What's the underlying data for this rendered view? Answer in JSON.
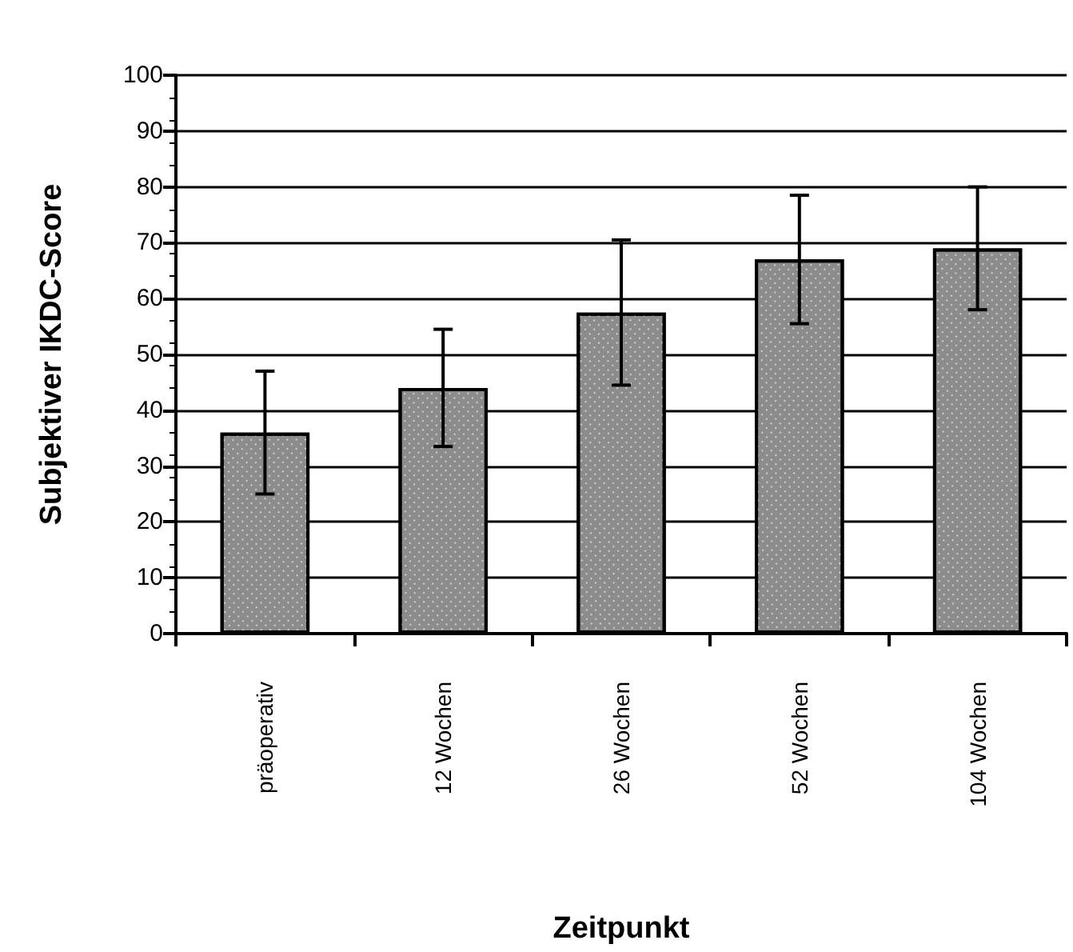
{
  "chart_data": {
    "type": "bar",
    "xlabel": "Zeitpunkt",
    "ylabel": "Subjektiver IKDC-Score",
    "categories": [
      "präoperativ",
      "12 Wochen",
      "26 Wochen",
      "52 Wochen",
      "104 Wochen"
    ],
    "values": [
      36,
      44,
      57.5,
      67,
      69
    ],
    "errors": [
      11,
      10.5,
      13,
      11.5,
      11
    ],
    "color": "#8c8c8c",
    "ylim": [
      0,
      100
    ],
    "yticks": [
      0,
      10,
      20,
      30,
      40,
      50,
      60,
      70,
      80,
      90,
      100
    ],
    "grid": "y"
  }
}
